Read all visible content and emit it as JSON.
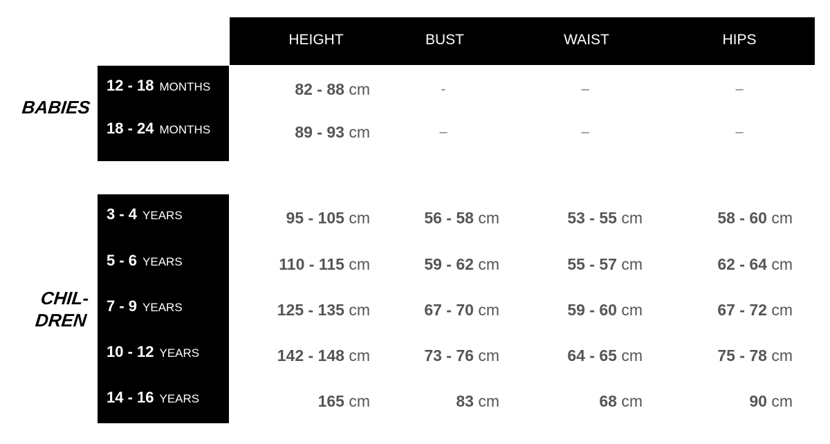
{
  "columns": [
    "HEIGHT",
    "BUST",
    "WAIST",
    "HIPS"
  ],
  "groups": [
    {
      "label": "BABIES",
      "rows": [
        {
          "age": "12 - 18",
          "unit": "MONTHS",
          "height": "82 - 88",
          "bust": "-",
          "waist": "–",
          "hips": "–"
        },
        {
          "age": "18 - 24",
          "unit": "MONTHS",
          "height": "89 - 93",
          "bust": "–",
          "waist": "–",
          "hips": "–"
        }
      ]
    },
    {
      "label_lines": [
        "CHIL-",
        "DREN"
      ],
      "rows": [
        {
          "age": "3 - 4",
          "unit": "YEARS",
          "height": "95 - 105",
          "bust": "56 - 58",
          "waist": "53 - 55",
          "hips": "58 - 60"
        },
        {
          "age": "5 - 6",
          "unit": "YEARS",
          "height": "110 - 115",
          "bust": "59 - 62",
          "waist": "55 - 57",
          "hips": "62 - 64"
        },
        {
          "age": "7 - 9",
          "unit": "YEARS",
          "height": "125 - 135",
          "bust": "67 - 70",
          "waist": "59 - 60",
          "hips": "67 - 72"
        },
        {
          "age": "10 - 12",
          "unit": "YEARS",
          "height": "142 - 148",
          "bust": "73 - 76",
          "waist": "64 - 65",
          "hips": "75 - 78"
        },
        {
          "age": "14 - 16",
          "unit": "YEARS",
          "height": "165",
          "bust": "83",
          "waist": "68",
          "hips": "90"
        }
      ]
    }
  ],
  "unit_label": "cm"
}
